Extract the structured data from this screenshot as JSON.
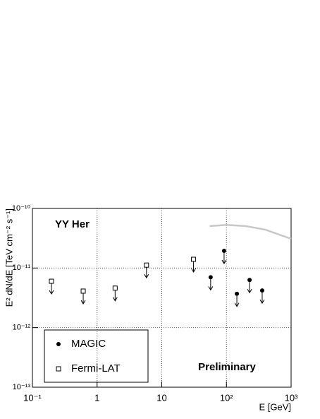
{
  "chart_data": {
    "type": "scatter",
    "x_label": "E [GeV]",
    "y_label": "E² dN/dE [TeV cm⁻² s⁻¹]",
    "annotations": [
      "YY Her",
      "Preliminary"
    ],
    "log_x": true,
    "log_y": true,
    "grid": true,
    "xlim": [
      0.1,
      1000
    ],
    "ylim": [
      1e-13,
      1e-10
    ],
    "xticks": [
      {
        "value": 0.1,
        "label": "10⁻¹"
      },
      1,
      10,
      {
        "value": 100,
        "label": "10²"
      },
      {
        "value": 1000,
        "label": "10³"
      }
    ],
    "yticks": [
      {
        "value": 1e-13,
        "label": "10⁻¹³"
      },
      {
        "value": 1e-12,
        "label": "10⁻¹²"
      },
      {
        "value": 1e-11,
        "label": "10⁻¹¹"
      },
      {
        "value": 1e-10,
        "label": "10⁻¹⁰"
      }
    ],
    "legend": "bottom-left",
    "series": [
      {
        "name": "MAGIC",
        "marker": "filled-circle",
        "upper_limit": true,
        "color": "#000000",
        "x": [
          57,
          92,
          145,
          228,
          357
        ],
        "values": [
          7e-12,
          1.94e-11,
          3.7e-12,
          6.3e-12,
          4.2e-12
        ]
      },
      {
        "name": "Fermi-LAT",
        "marker": "open-square",
        "upper_limit": true,
        "color": "#000000",
        "x": [
          0.197,
          0.61,
          1.9,
          5.8,
          31
        ],
        "values": [
          6e-12,
          4.1e-12,
          4.6e-12,
          1.12e-11,
          1.4e-11
        ]
      },
      {
        "marker": "line",
        "color": "#c8c8c8",
        "x": [
          55,
          100,
          200,
          400,
          1000
        ],
        "values": [
          5.05e-11,
          5.3e-11,
          5.05e-11,
          4.4e-11,
          3.1e-11
        ]
      }
    ]
  }
}
